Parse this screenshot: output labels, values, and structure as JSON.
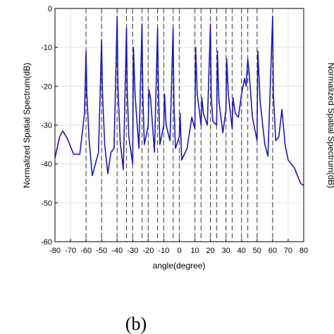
{
  "chart_data": {
    "type": "line",
    "title": "",
    "xlabel": "angle(degree)",
    "ylabel": "Normalized Spatial Spectrum(dB)",
    "xlim": [
      -80,
      80
    ],
    "ylim": [
      -60,
      0
    ],
    "xticks": [
      -80,
      -70,
      -60,
      -50,
      -40,
      -30,
      -20,
      -10,
      0,
      10,
      20,
      30,
      40,
      50,
      60,
      70,
      80
    ],
    "xtick_labels": [
      "-80",
      "-70",
      "-60",
      "-50",
      "-40",
      "-30",
      "-20",
      "-10",
      "0",
      "10",
      "20",
      "30",
      "40",
      "50",
      "60",
      "70",
      "80"
    ],
    "yticks": [
      0,
      -10,
      -20,
      -30,
      -40,
      -50,
      -60
    ],
    "ytick_labels": [
      "0",
      "-10",
      "-20",
      "-30",
      "-40",
      "-50",
      "-60"
    ],
    "grid": true,
    "line_color": "#1a1ab4",
    "reference_line_color": "#555555",
    "reference_lines_x": [
      -60,
      -50,
      -40,
      -34,
      -30,
      -24,
      -20,
      -14,
      -10,
      -4,
      0,
      10,
      14,
      20,
      24,
      30,
      34,
      40,
      44,
      50,
      60
    ],
    "series": [
      {
        "x": [
          -80,
          -77,
          -75,
          -72,
          -68,
          -64,
          -61,
          -60,
          -59.5,
          -58,
          -56,
          -52,
          -50,
          -49.5,
          -48,
          -46,
          -44,
          -42,
          -40,
          -39.5,
          -38,
          -36,
          -34,
          -33.5,
          -32.5,
          -30,
          -29.5,
          -28.5,
          -26,
          -24,
          -23.5,
          -22.5,
          -20,
          -19.5,
          -18.5,
          -16,
          -14,
          -13.5,
          -12.5,
          -10,
          -9.5,
          -8.5,
          -6,
          -4,
          -3.5,
          -2.5,
          0,
          0.5,
          1.5,
          5,
          8,
          10,
          10.5,
          11.5,
          14,
          14.5,
          15.5,
          18,
          20,
          20.5,
          21.5,
          24,
          24.5,
          25.5,
          28,
          30,
          30.5,
          31.5,
          34,
          34.5,
          36,
          38,
          40,
          41,
          42,
          43,
          44,
          45,
          47,
          50,
          50.5,
          52,
          55,
          57,
          60,
          60.5,
          62,
          64,
          66,
          68,
          70,
          74,
          78,
          80
        ],
        "y": [
          -38.5,
          -33,
          -31.5,
          -33.5,
          -37.5,
          -37.5,
          -27,
          -11,
          -22,
          -34,
          -43,
          -37,
          -8,
          -21,
          -35,
          -42.5,
          -37,
          -36,
          -2,
          -20,
          -34.5,
          -41.5,
          -5,
          -21,
          -33,
          -40,
          -10,
          -22,
          -36,
          -4,
          -22,
          -35,
          -30,
          -21,
          -23,
          -37,
          -5,
          -20,
          -35,
          -30,
          -22,
          -30,
          -34,
          -5,
          -24,
          -36,
          -33,
          -27,
          -39,
          -36,
          -28,
          -31,
          -10,
          -22,
          -30,
          -23,
          -27,
          -30,
          -4,
          -22,
          -29,
          -30,
          -11,
          -24,
          -32,
          -26,
          -13,
          -22,
          -31,
          -23,
          -27,
          -28,
          -22,
          -20,
          -18,
          -20,
          -13,
          -17,
          -28,
          -34,
          -11,
          -24,
          -35,
          -38,
          -2,
          -22,
          -34,
          -33,
          -26,
          -35,
          -39,
          -41,
          -45,
          -45.5
        ]
      }
    ]
  },
  "caption": "(b)",
  "right_panel_label": "Normalized Spatial Spectrum(dB)"
}
